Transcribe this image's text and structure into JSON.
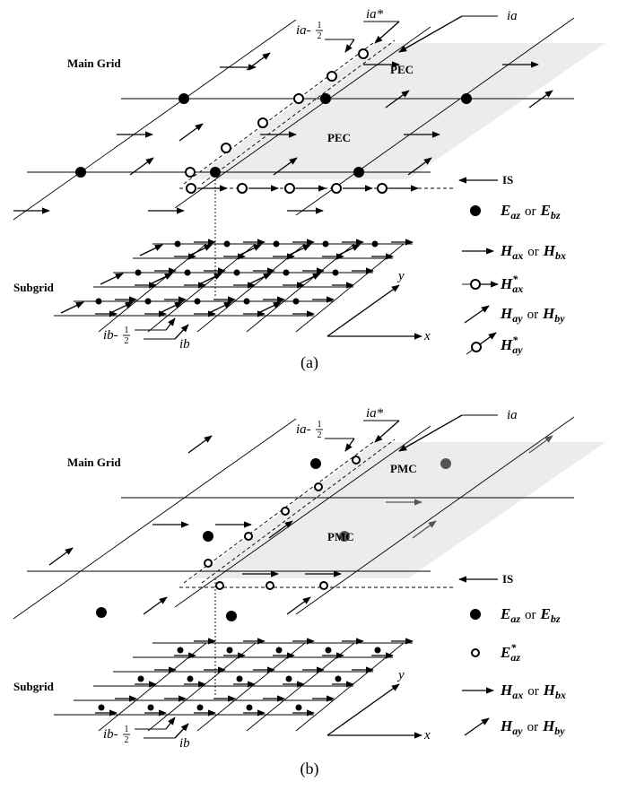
{
  "panel_a": {
    "labels": {
      "main_grid": "Main Grid",
      "subgrid": "Subgrid",
      "region_1": "PEC",
      "region_2": "PEC",
      "is": "IS",
      "ia_star": "ia*",
      "ia_half": {
        "prefix": "ia-",
        "num": "1",
        "den": "2"
      },
      "ia": "ia",
      "ib_half": {
        "prefix": "ib-",
        "num": "1",
        "den": "2"
      },
      "ib": "ib",
      "axis_x": "x",
      "axis_y": "y"
    },
    "legend": [
      {
        "symbol": "E",
        "sub": "az",
        "conj": "or",
        "symbol2": "E",
        "sub2": "bz"
      },
      {
        "symbol": "H",
        "sub": "ax",
        "conj": "or",
        "symbol2": "H",
        "sub2": "bx"
      },
      {
        "symbol": "H",
        "sup": "*",
        "sub": "ax"
      },
      {
        "symbol": "H",
        "sub": "ay",
        "conj": "or",
        "symbol2": "H",
        "sub2": "by"
      },
      {
        "symbol": "H",
        "sup": "*",
        "sub": "ay"
      }
    ],
    "caption": "(a)"
  },
  "panel_b": {
    "labels": {
      "main_grid": "Main Grid",
      "subgrid": "Subgrid",
      "region_1": "PMC",
      "region_2": "PMC",
      "is": "IS",
      "ia_star": "ia*",
      "ia_half": {
        "prefix": "ia-",
        "num": "1",
        "den": "2"
      },
      "ia": "ia",
      "ib_half": {
        "prefix": "ib-",
        "num": "1",
        "den": "2"
      },
      "ib": "ib",
      "axis_x": "x",
      "axis_y": "y"
    },
    "legend": [
      {
        "symbol": "E",
        "sub": "az",
        "conj": "or",
        "symbol2": "E",
        "sub2": "bz"
      },
      {
        "symbol": "E",
        "sup": "*",
        "sub": "az"
      },
      {
        "symbol": "H",
        "sub": "ax",
        "conj": "or",
        "symbol2": "H",
        "sub2": "bx"
      },
      {
        "symbol": "H",
        "sub": "ay",
        "conj": "or",
        "symbol2": "H",
        "sub2": "by"
      }
    ],
    "caption": "(b)"
  }
}
